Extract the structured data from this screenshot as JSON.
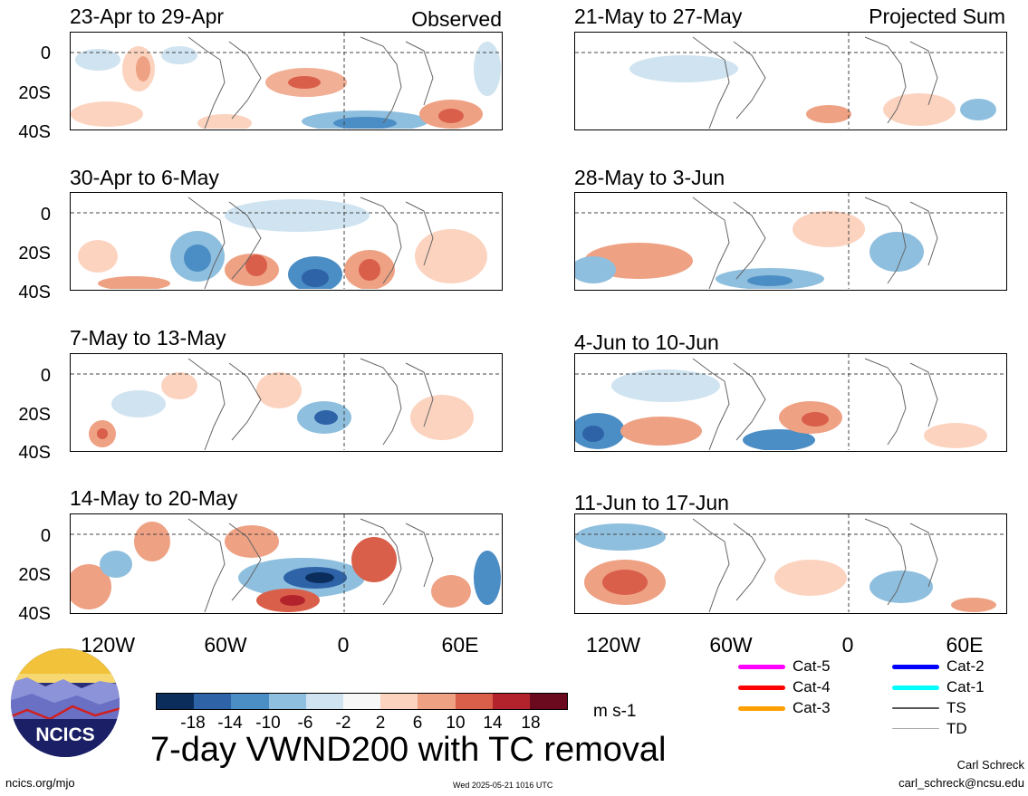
{
  "panels": {
    "p1": {
      "title": "23-Apr to 29-Apr",
      "tag": "Observed"
    },
    "p2": {
      "title": "30-Apr to 6-May"
    },
    "p3": {
      "title": "7-May to 13-May"
    },
    "p4": {
      "title": "14-May to 20-May"
    },
    "p5": {
      "title": "21-May to 27-May",
      "tag": "Projected Sum"
    },
    "p6": {
      "title": "28-May to 3-Jun"
    },
    "p7": {
      "title": "4-Jun to 10-Jun"
    },
    "p8": {
      "title": "11-Jun to 17-Jun"
    }
  },
  "axes": {
    "lat_ticks": [
      "0",
      "20S",
      "40S"
    ],
    "lon_ticks": [
      "120W",
      "60W",
      "0",
      "60E"
    ]
  },
  "colorbar": {
    "labels": [
      "-18",
      "-14",
      "-10",
      "-6",
      "-2",
      "2",
      "6",
      "10",
      "14",
      "18"
    ],
    "units": "m s-1",
    "colors": [
      "#0b2d5b",
      "#2e63a8",
      "#4b8dc5",
      "#8fbfde",
      "#cfe3f0",
      "#f7f7f7",
      "#fbd3bf",
      "#eea183",
      "#d95f4b",
      "#b3232c",
      "#6b0a1f"
    ]
  },
  "title": "7-day VWND200 with TC removal",
  "logo": {
    "text": "NCICS"
  },
  "legend": {
    "cat5": {
      "label": "Cat-5",
      "color": "#ff00ff"
    },
    "cat4": {
      "label": "Cat-4",
      "color": "#ff0000"
    },
    "cat3": {
      "label": "Cat-3",
      "color": "#ff9f00"
    },
    "cat2": {
      "label": "Cat-2",
      "color": "#0000ff"
    },
    "cat1": {
      "label": "Cat-1",
      "color": "#00ffff"
    },
    "ts": {
      "label": "TS",
      "color": "#555555"
    },
    "td": {
      "label": "TD",
      "color": "#aaaaaa"
    }
  },
  "footer": {
    "left": "ncics.org/mjo",
    "timestamp": "Wed 2025-05-21 1016 UTC",
    "author": "Carl Schreck",
    "email": "carl_schreck@ncsu.edu"
  }
}
